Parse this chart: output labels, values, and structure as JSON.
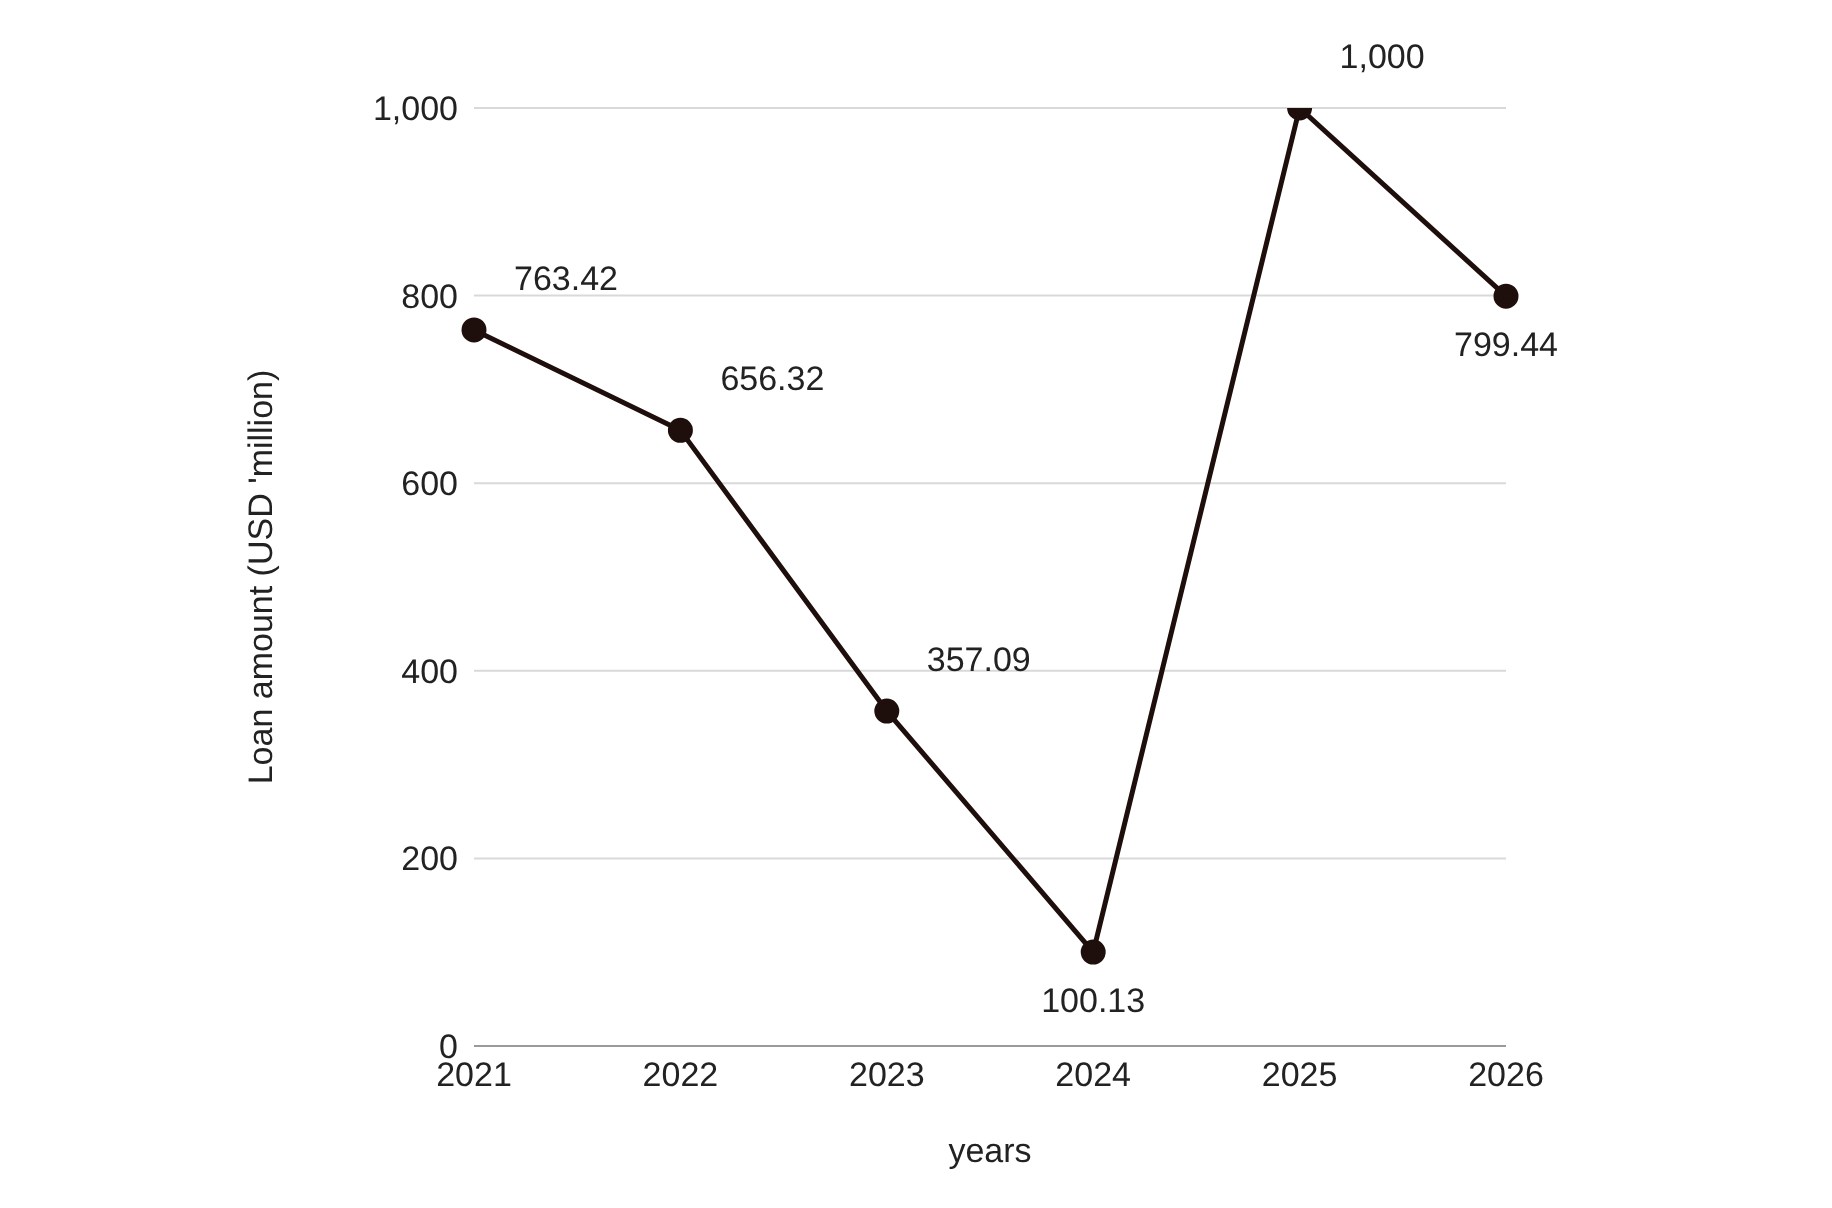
{
  "chart_data": {
    "type": "line",
    "xlabel": "years",
    "ylabel": "Loan amount (USD 'million)",
    "categories": [
      "2021",
      "2022",
      "2023",
      "2024",
      "2025",
      "2026"
    ],
    "series": [
      {
        "color": "#1e0f0c",
        "values": [
          763.42,
          656.32,
          357.09,
          100.13,
          1000,
          799.44
        ],
        "value_labels": [
          "763.42",
          "656.32",
          "357.09",
          "100.13",
          "1,000",
          "799.44"
        ]
      }
    ],
    "ylim": [
      0,
      1000
    ],
    "yticks": [
      0,
      {
        "value": 200,
        "label": "200"
      },
      {
        "value": 400,
        "label": "400"
      },
      {
        "value": 600,
        "label": "600"
      },
      {
        "value": 800,
        "label": "800"
      },
      {
        "value": 1000,
        "label": "1,000"
      }
    ],
    "grid": "y",
    "marker": "circle",
    "line_style": "solid"
  }
}
